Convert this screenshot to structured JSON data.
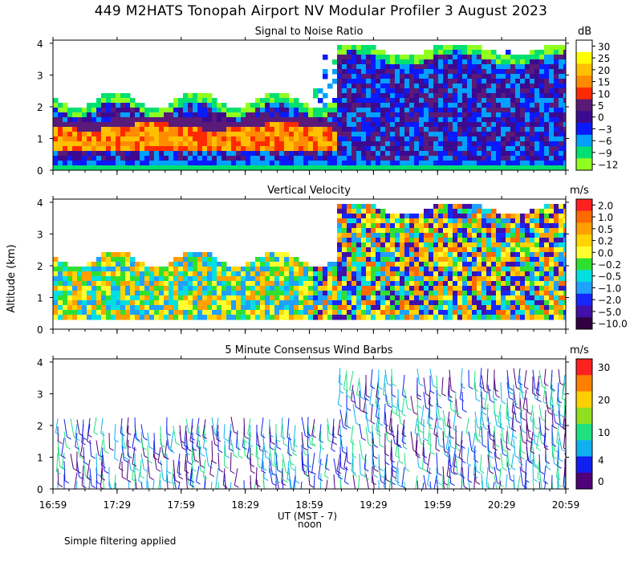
{
  "figure": {
    "title": "449 M2HATS Tonopah Airport NV Modular Profiler  3 August 2023",
    "footnote": "Simple filtering applied",
    "ylabel": "Altitude (km)",
    "xlabel": "UT  (MST - 7)",
    "xlabel_sub": "noon",
    "x_ticks": [
      "16:59",
      "17:29",
      "17:59",
      "18:29",
      "18:59",
      "19:29",
      "19:59",
      "20:29",
      "20:59"
    ],
    "y_ticks": [
      "0",
      "1",
      "2",
      "3",
      "4"
    ]
  },
  "chart_data": [
    {
      "type": "heatmap",
      "title": "Signal to Noise Ratio",
      "units": "dB",
      "xlim": [
        "16:59",
        "20:59"
      ],
      "ylim": [
        0,
        4.1
      ],
      "colorbar": {
        "labels": [
          "30",
          "25",
          "20",
          "15",
          "10",
          "5",
          "0",
          "−3",
          "−6",
          "−9",
          "−12"
        ],
        "colors": [
          "#ffffff",
          "#ffff00",
          "#ffc000",
          "#ff8c00",
          "#ff2a00",
          "#5a1a78",
          "#3c0a90",
          "#0a1aff",
          "#00a0ff",
          "#00e070",
          "#90ff20"
        ]
      },
      "features": [
        {
          "time_range": [
            "16:59",
            "19:05"
          ],
          "altitude_km": [
            0.7,
            1.4
          ],
          "snr_db": "10 to 20",
          "description": "strong return layer"
        },
        {
          "time_range": [
            "16:59",
            "20:59"
          ],
          "altitude_km": [
            0.3,
            2.3
          ],
          "snr_db": "-12 to 5"
        },
        {
          "time_range": [
            "19:20",
            "20:59"
          ],
          "altitude_km": [
            0.3,
            4.0
          ],
          "snr_db": "-12 to 5"
        }
      ]
    },
    {
      "type": "heatmap",
      "title": "Vertical Velocity",
      "units": "m/s",
      "xlim": [
        "16:59",
        "20:59"
      ],
      "ylim": [
        0,
        4.1
      ],
      "colorbar": {
        "labels": [
          "2.0",
          "1.0",
          "0.5",
          "0.2",
          "0.0",
          "−0.2",
          "−0.5",
          "−1.0",
          "−2.0",
          "−5.0",
          "−10.0"
        ],
        "colors": [
          "#ff2020",
          "#ff6a00",
          "#ffa000",
          "#ffd400",
          "#ffff30",
          "#30e030",
          "#00e0e0",
          "#20a0ff",
          "#1428ff",
          "#4010a8",
          "#300040"
        ]
      },
      "features": [
        {
          "time_range": [
            "16:59",
            "19:05"
          ],
          "altitude_km": [
            0.3,
            2.3
          ],
          "w_ms": "-1.0 to 1.0"
        },
        {
          "time_range": [
            "19:05",
            "20:59"
          ],
          "altitude_km": [
            0.5,
            4.0
          ],
          "w_ms": "-2.0 to 2.0"
        }
      ]
    },
    {
      "type": "scatter",
      "title": "5 Minute Consensus Wind Barbs",
      "units": "m/s",
      "xlim": [
        "16:59",
        "20:59"
      ],
      "ylim": [
        0,
        4.1
      ],
      "colorbar": {
        "labels": [
          "30",
          "20",
          "10",
          "4",
          "0"
        ],
        "colors": [
          "#ff2020",
          "#ff8000",
          "#ffd000",
          "#90e020",
          "#20e080",
          "#10b0f0",
          "#1020f0",
          "#500078"
        ]
      },
      "features": [
        {
          "time_range": [
            "16:59",
            "19:05"
          ],
          "altitude_km": [
            0.2,
            2.3
          ],
          "speed_ms": "0 to 8"
        },
        {
          "time_range": [
            "19:05",
            "20:59"
          ],
          "altitude_km": [
            0.2,
            3.9
          ],
          "speed_ms": "0 to 10"
        }
      ]
    }
  ]
}
